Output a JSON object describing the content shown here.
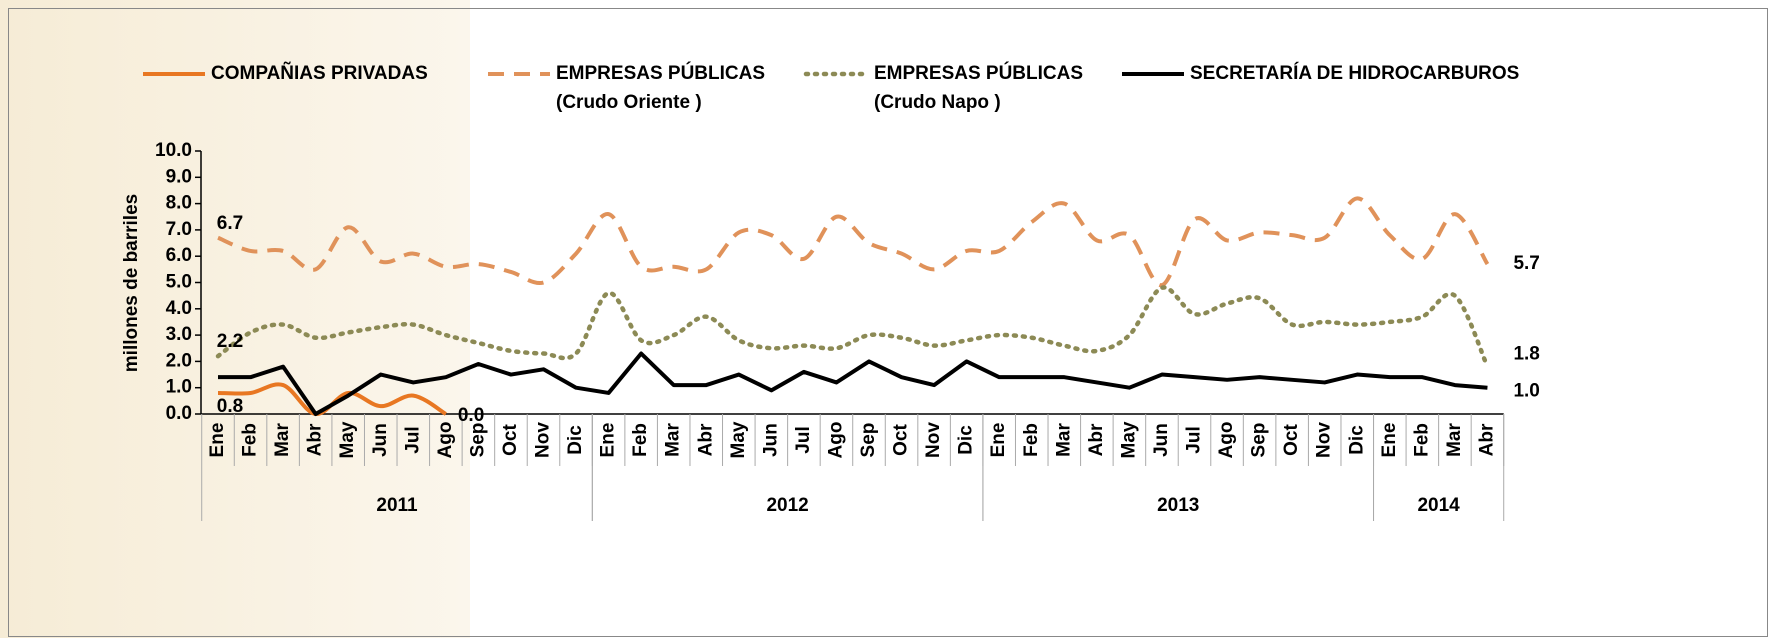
{
  "chart_data": {
    "type": "line",
    "y_label": "millones de barriles",
    "ylim": [
      0,
      10
    ],
    "yticks": [
      {
        "value": 0,
        "label": "0.0"
      },
      {
        "value": 1,
        "label": "1.0"
      },
      {
        "value": 2,
        "label": "2.0"
      },
      {
        "value": 3,
        "label": "3.0"
      },
      {
        "value": 4,
        "label": "4.0"
      },
      {
        "value": 5,
        "label": "5.0"
      },
      {
        "value": 6,
        "label": "6.0"
      },
      {
        "value": 7,
        "label": "7.0"
      },
      {
        "value": 8,
        "label": "8.0"
      },
      {
        "value": 9,
        "label": "9.0"
      },
      {
        "value": 10,
        "label": "10.0"
      }
    ],
    "category_groups": [
      {
        "label": "2011",
        "categories": [
          "Ene",
          "Feb",
          "Mar",
          "Abr",
          "May",
          "Jun",
          "Jul",
          "Ago",
          "Sep",
          "Oct",
          "Nov",
          "Dic"
        ]
      },
      {
        "label": "2012",
        "categories": [
          "Ene",
          "Feb",
          "Mar",
          "Abr",
          "May",
          "Jun",
          "Jul",
          "Ago",
          "Sep",
          "Oct",
          "Nov",
          "Dic"
        ]
      },
      {
        "label": "2013",
        "categories": [
          "Ene",
          "Feb",
          "Mar",
          "Abr",
          "May",
          "Jun",
          "Jul",
          "Ago",
          "Sep",
          "Oct",
          "Nov",
          "Dic"
        ]
      },
      {
        "label": "2014",
        "categories": [
          "Ene",
          "Feb",
          "Mar",
          "Abr"
        ]
      }
    ],
    "series": [
      {
        "name": [
          "COMPAÑIAS PRIVADAS"
        ],
        "color": "#e87722",
        "style": "solid",
        "smooth": true,
        "values": [
          0.8,
          0.8,
          1.1,
          0.0,
          0.8,
          0.3,
          0.7,
          0.0,
          null,
          null,
          null,
          null,
          null,
          null,
          null,
          null,
          null,
          null,
          null,
          null,
          null,
          null,
          null,
          null,
          null,
          null,
          null,
          null,
          null,
          null,
          null,
          null,
          null,
          null,
          null,
          null,
          null,
          null,
          null,
          null
        ],
        "value_labels": [
          "0.8",
          null,
          null,
          null,
          null,
          null,
          null,
          "0.0",
          null,
          null,
          null,
          null,
          null,
          null,
          null,
          null,
          null,
          null,
          null,
          null,
          null,
          null,
          null,
          null,
          null,
          null,
          null,
          null,
          null,
          null,
          null,
          null,
          null,
          null,
          null,
          null,
          null,
          null,
          null,
          null
        ]
      },
      {
        "name": [
          "EMPRESAS PÚBLICAS",
          "(Crudo Oriente )"
        ],
        "color": "#e0925a",
        "style": "dashed",
        "smooth": true,
        "values": [
          6.7,
          6.2,
          6.2,
          5.5,
          7.1,
          5.8,
          6.1,
          5.6,
          5.7,
          5.4,
          5.0,
          6.1,
          7.6,
          5.6,
          5.6,
          5.5,
          6.9,
          6.8,
          5.9,
          7.5,
          6.5,
          6.1,
          5.5,
          6.2,
          6.2,
          7.3,
          8.0,
          6.6,
          6.8,
          4.9,
          7.4,
          6.6,
          6.9,
          6.8,
          6.7,
          8.2,
          6.8,
          5.9,
          7.6,
          5.7
        ],
        "value_labels": [
          "6.7",
          null,
          null,
          null,
          null,
          null,
          null,
          null,
          null,
          null,
          null,
          null,
          null,
          null,
          null,
          null,
          null,
          null,
          null,
          null,
          null,
          null,
          null,
          null,
          null,
          null,
          null,
          null,
          null,
          null,
          null,
          null,
          null,
          null,
          null,
          null,
          null,
          null,
          null,
          "5.7"
        ]
      },
      {
        "name": [
          "EMPRESAS PÚBLICAS",
          "(Crudo Napo )"
        ],
        "color": "#8c8a55",
        "style": "dotted",
        "smooth": true,
        "values": [
          2.2,
          3.1,
          3.4,
          2.9,
          3.1,
          3.3,
          3.4,
          3.0,
          2.7,
          2.4,
          2.3,
          2.3,
          4.6,
          2.8,
          3.0,
          3.7,
          2.8,
          2.5,
          2.6,
          2.5,
          3.0,
          2.9,
          2.6,
          2.8,
          3.0,
          2.9,
          2.6,
          2.4,
          3.0,
          4.8,
          3.8,
          4.2,
          4.4,
          3.4,
          3.5,
          3.4,
          3.5,
          3.7,
          4.5,
          1.8
        ],
        "value_labels": [
          "2.2",
          null,
          null,
          null,
          null,
          null,
          null,
          null,
          null,
          null,
          null,
          null,
          null,
          null,
          null,
          null,
          null,
          null,
          null,
          null,
          null,
          null,
          null,
          null,
          null,
          null,
          null,
          null,
          null,
          null,
          null,
          null,
          null,
          null,
          null,
          null,
          null,
          null,
          null,
          "1.8"
        ]
      },
      {
        "name": [
          "SECRETARÍA DE HIDROCARBUROS"
        ],
        "color": "#000000",
        "style": "solid",
        "smooth": false,
        "values": [
          1.4,
          1.4,
          1.8,
          0.0,
          0.7,
          1.5,
          1.2,
          1.4,
          1.9,
          1.5,
          1.7,
          1.0,
          0.8,
          2.3,
          1.1,
          1.1,
          1.5,
          0.9,
          1.6,
          1.2,
          2.0,
          1.4,
          1.1,
          2.0,
          1.4,
          1.4,
          1.4,
          1.2,
          1.0,
          1.5,
          1.4,
          1.3,
          1.4,
          1.3,
          1.2,
          1.5,
          1.4,
          1.4,
          1.1,
          1.0
        ],
        "value_labels": [
          null,
          null,
          null,
          null,
          null,
          null,
          null,
          null,
          null,
          null,
          null,
          null,
          null,
          null,
          null,
          null,
          null,
          null,
          null,
          null,
          null,
          null,
          null,
          null,
          null,
          null,
          null,
          null,
          null,
          null,
          null,
          null,
          null,
          null,
          null,
          null,
          null,
          null,
          null,
          "1.0"
        ]
      }
    ]
  }
}
